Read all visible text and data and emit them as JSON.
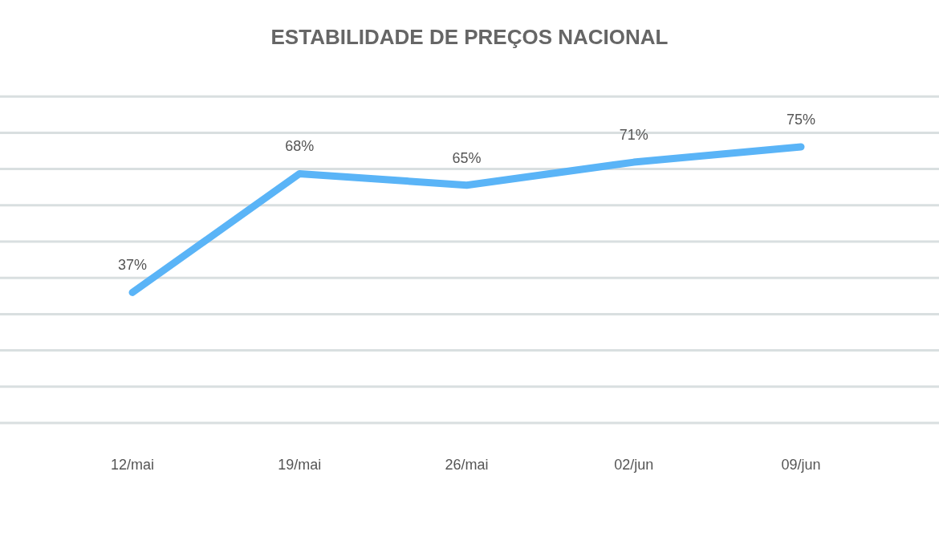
{
  "chart_data": {
    "type": "line",
    "title": "ESTABILIDADE DE PREÇOS NACIONAL",
    "categories": [
      "12/mai",
      "19/mai",
      "26/mai",
      "02/jun",
      "09/jun"
    ],
    "series": [
      {
        "color": "#5ab4f7",
        "values": [
          37,
          68,
          65,
          71,
          75
        ],
        "value_labels": [
          "37%",
          "68%",
          "65%",
          "71%",
          "75%"
        ]
      }
    ],
    "grid": true,
    "marker": "none",
    "line_style": "solid"
  }
}
